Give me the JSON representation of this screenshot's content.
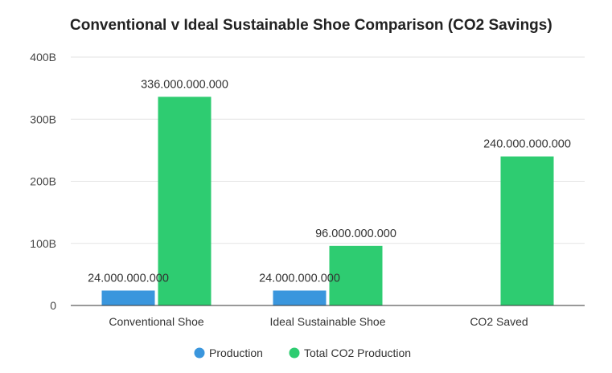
{
  "chart_data": {
    "type": "bar",
    "title": "Conventional v Ideal Sustainable Shoe Comparison (CO2 Savings)",
    "xlabel": "",
    "ylabel": "",
    "categories": [
      "Conventional Shoe",
      "Ideal Sustainable Shoe",
      "CO2 Saved"
    ],
    "series": [
      {
        "name": "Production",
        "color": "#3a96dd",
        "values": [
          24000000000,
          24000000000,
          null
        ],
        "labels": [
          "24.000.000.000",
          "24.000.000.000",
          ""
        ]
      },
      {
        "name": "Total CO2 Production",
        "color": "#2ecc71",
        "values": [
          336000000000,
          96000000000,
          240000000000
        ],
        "labels": [
          "336.000.000.000",
          "96.000.000.000",
          "240.000.000.000"
        ]
      }
    ],
    "ylim": [
      0,
      400000000000
    ],
    "yticks": [
      0,
      100000000000,
      200000000000,
      300000000000,
      400000000000
    ],
    "ytick_labels": [
      "0",
      "100B",
      "200B",
      "300B",
      "400B"
    ],
    "grid": true,
    "legend": "bottom"
  }
}
